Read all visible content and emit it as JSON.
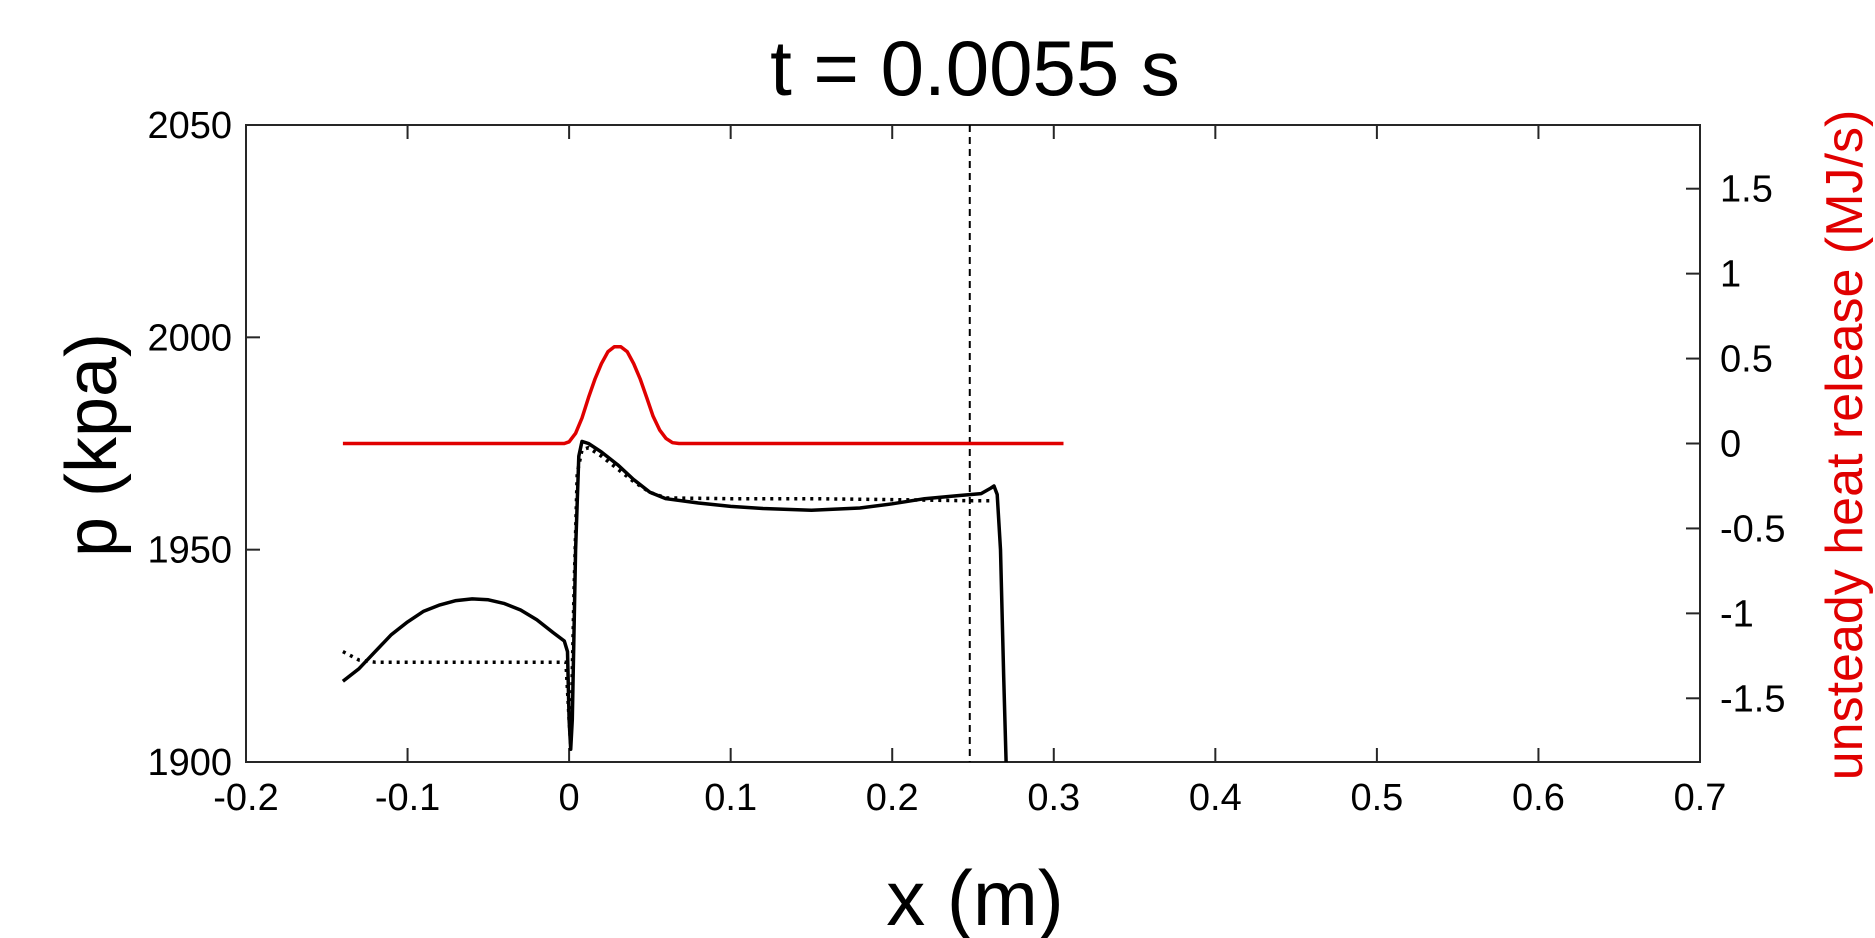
{
  "chart_data": {
    "type": "line",
    "title": "t = 0.0055 s",
    "xlabel": "x (m)",
    "ylabel": "p (kpa)",
    "y2label": "unsteady heat release (MJ/s)",
    "xlim": [
      -0.2,
      0.7
    ],
    "ylim": [
      1900,
      2050
    ],
    "y2lim": [
      -1.875,
      1.875
    ],
    "xticks": [
      "-0.2",
      "-0.1",
      "0",
      "0.1",
      "0.2",
      "0.3",
      "0.4",
      "0.5",
      "0.6",
      "0.7"
    ],
    "yticks": [
      "1900",
      "1950",
      "2000",
      "2050"
    ],
    "y2ticks": [
      "-1.5",
      "-1",
      "-0.5",
      "0",
      "0.5",
      "1",
      "1.5"
    ],
    "grid": false,
    "vline_x": 0.248,
    "colors": {
      "pressure": "#000000",
      "heat": "#e00000",
      "right_axis": "#e00000"
    },
    "series": [
      {
        "axis": "left",
        "style": "solid",
        "points": [
          [
            -0.14,
            1919
          ],
          [
            -0.13,
            1922
          ],
          [
            -0.12,
            1926
          ],
          [
            -0.11,
            1930
          ],
          [
            -0.1,
            1933
          ],
          [
            -0.09,
            1935.5
          ],
          [
            -0.08,
            1937
          ],
          [
            -0.07,
            1938
          ],
          [
            -0.06,
            1938.4
          ],
          [
            -0.05,
            1938.2
          ],
          [
            -0.04,
            1937.3
          ],
          [
            -0.03,
            1935.8
          ],
          [
            -0.02,
            1933.5
          ],
          [
            -0.01,
            1930.5
          ],
          [
            -0.003,
            1928.5
          ],
          [
            -0.001,
            1926
          ],
          [
            0.0,
            1910
          ],
          [
            0.001,
            1903
          ],
          [
            0.002,
            1910
          ],
          [
            0.004,
            1950
          ],
          [
            0.006,
            1972
          ],
          [
            0.008,
            1975.5
          ],
          [
            0.012,
            1975
          ],
          [
            0.02,
            1973
          ],
          [
            0.03,
            1970
          ],
          [
            0.04,
            1966.5
          ],
          [
            0.05,
            1963.5
          ],
          [
            0.06,
            1962
          ],
          [
            0.08,
            1961
          ],
          [
            0.1,
            1960.2
          ],
          [
            0.12,
            1959.7
          ],
          [
            0.15,
            1959.3
          ],
          [
            0.18,
            1959.8
          ],
          [
            0.2,
            1960.8
          ],
          [
            0.22,
            1962
          ],
          [
            0.24,
            1962.7
          ],
          [
            0.255,
            1963.2
          ],
          [
            0.261,
            1964.5
          ],
          [
            0.263,
            1965
          ],
          [
            0.265,
            1963
          ],
          [
            0.267,
            1950
          ],
          [
            0.269,
            1920
          ],
          [
            0.2705,
            1900
          ]
        ]
      },
      {
        "axis": "left",
        "style": "dotted",
        "points": [
          [
            -0.14,
            1926
          ],
          [
            -0.13,
            1924
          ],
          [
            -0.12,
            1923.5
          ],
          [
            -0.1,
            1923.5
          ],
          [
            -0.05,
            1923.5
          ],
          [
            -0.02,
            1923.5
          ],
          [
            -0.002,
            1923.5
          ],
          [
            0.0,
            1910
          ],
          [
            0.001,
            1904
          ],
          [
            0.003,
            1940
          ],
          [
            0.005,
            1968
          ],
          [
            0.008,
            1973.5
          ],
          [
            0.012,
            1974
          ],
          [
            0.02,
            1972
          ],
          [
            0.03,
            1969
          ],
          [
            0.04,
            1966
          ],
          [
            0.05,
            1963.5
          ],
          [
            0.06,
            1962.2
          ],
          [
            0.1,
            1962
          ],
          [
            0.15,
            1962
          ],
          [
            0.2,
            1961.8
          ],
          [
            0.25,
            1961.5
          ],
          [
            0.262,
            1961.5
          ]
        ]
      },
      {
        "axis": "right",
        "style": "solid",
        "points": [
          [
            -0.14,
            0
          ],
          [
            -0.1,
            0
          ],
          [
            -0.05,
            0
          ],
          [
            -0.003,
            0
          ],
          [
            0.0,
            0.01
          ],
          [
            0.004,
            0.06
          ],
          [
            0.008,
            0.15
          ],
          [
            0.012,
            0.27
          ],
          [
            0.016,
            0.38
          ],
          [
            0.02,
            0.47
          ],
          [
            0.024,
            0.54
          ],
          [
            0.028,
            0.57
          ],
          [
            0.032,
            0.57
          ],
          [
            0.036,
            0.54
          ],
          [
            0.04,
            0.47
          ],
          [
            0.044,
            0.38
          ],
          [
            0.048,
            0.27
          ],
          [
            0.052,
            0.16
          ],
          [
            0.056,
            0.08
          ],
          [
            0.06,
            0.03
          ],
          [
            0.064,
            0.005
          ],
          [
            0.068,
            0
          ],
          [
            0.1,
            0
          ],
          [
            0.2,
            0
          ],
          [
            0.306,
            0
          ]
        ]
      }
    ]
  }
}
